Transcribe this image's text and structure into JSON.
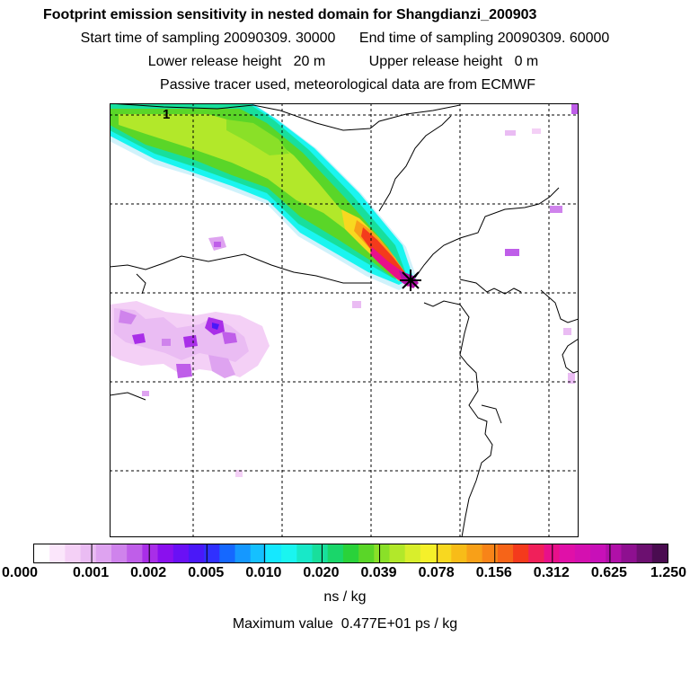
{
  "header": {
    "title": "Footprint emission sensitivity in nested domain for Shangdianzi_200903",
    "start_label": "Start time of sampling",
    "start_value": "20090309. 30000",
    "end_label": "End time of sampling",
    "end_value": "20090309. 60000",
    "lower_label": "Lower release height",
    "lower_value": "20 m",
    "upper_label": "Upper release height",
    "upper_value": "0 m",
    "tracer_note": "Passive tracer used, meteorological data are from ECMWF"
  },
  "map": {
    "grid_label": "1",
    "receptor_marker": "Shangdianzi"
  },
  "colorbar": {
    "tick_labels": [
      "0.000",
      "0.001",
      "0.002",
      "0.005",
      "0.010",
      "0.020",
      "0.039",
      "0.078",
      "0.156",
      "0.312",
      "0.625",
      "1.250"
    ],
    "colors": [
      "#ffffff",
      "#fbe6fb",
      "#f4d0f6",
      "#eabcf3",
      "#dea3f0",
      "#cf83ec",
      "#bf5ee9",
      "#a92ee8",
      "#8a10ee",
      "#6a10f5",
      "#4a18f8",
      "#3030ff",
      "#1568ff",
      "#1598ff",
      "#15c0ff",
      "#15e8ff",
      "#1af5f0",
      "#18e8c8",
      "#18df9c",
      "#1ad66a",
      "#2ad23a",
      "#5ad628",
      "#8ae028",
      "#b2e82a",
      "#d8ee2c",
      "#f5f02a",
      "#f8d820",
      "#f8bc18",
      "#f8a018",
      "#f88418",
      "#f66418",
      "#f43a1c",
      "#f0205a",
      "#e8108a",
      "#e010a8",
      "#d410b0",
      "#c810b8",
      "#b010a8",
      "#8e1090",
      "#6c1070",
      "#4a0c50"
    ],
    "units": "ns / kg"
  },
  "footer": {
    "max_label": "Maximum value",
    "max_value": "0.477E+01 ps / kg"
  }
}
